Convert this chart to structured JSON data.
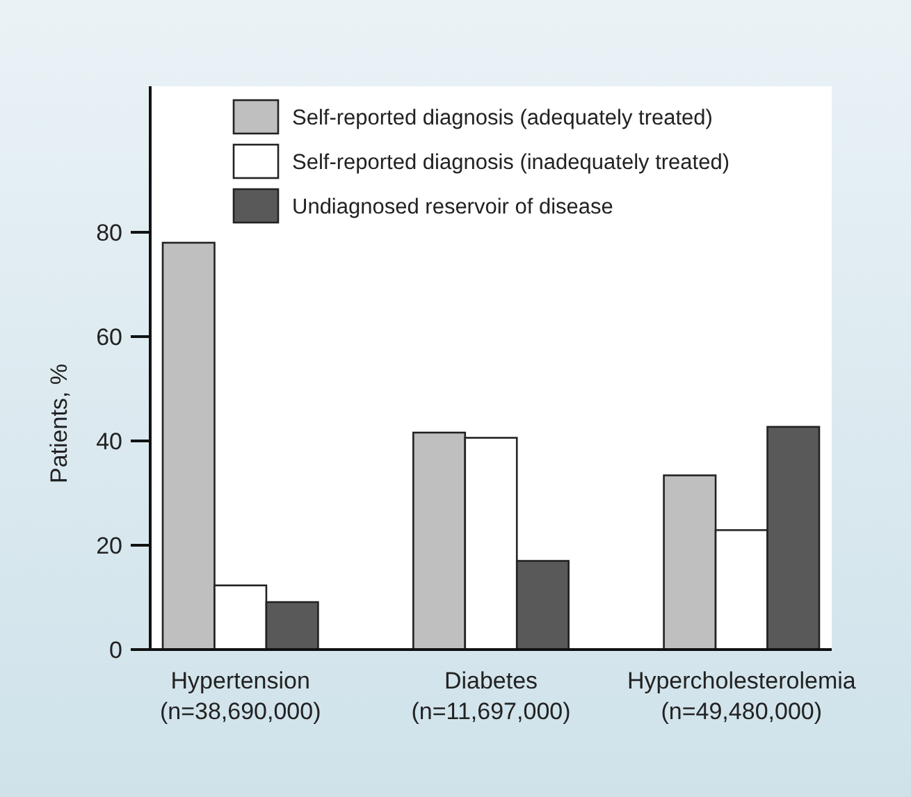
{
  "chart_data": {
    "type": "bar",
    "ylabel": "Patients, %",
    "categories": [
      "Hypertension\n(n=38,690,000)",
      "Diabetes\n(n=11,697,000)",
      "Hypercholesterolemia\n(n=49,480,000)"
    ],
    "series": [
      {
        "name": "Self-reported diagnosis (adequately treated)",
        "color": "#bfbfbf",
        "values": [
          78,
          41.6,
          33.4
        ]
      },
      {
        "name": "Self-reported diagnosis (inadequately treated)",
        "color": "#ffffff",
        "values": [
          12.3,
          40.6,
          22.9
        ]
      },
      {
        "name": "Undiagnosed reservoir of disease",
        "color": "#595959",
        "values": [
          9.1,
          17,
          42.7
        ]
      }
    ],
    "ylim": [
      0,
      108
    ],
    "yticks": [
      0,
      20,
      40,
      60,
      80
    ],
    "legend": "top right"
  }
}
